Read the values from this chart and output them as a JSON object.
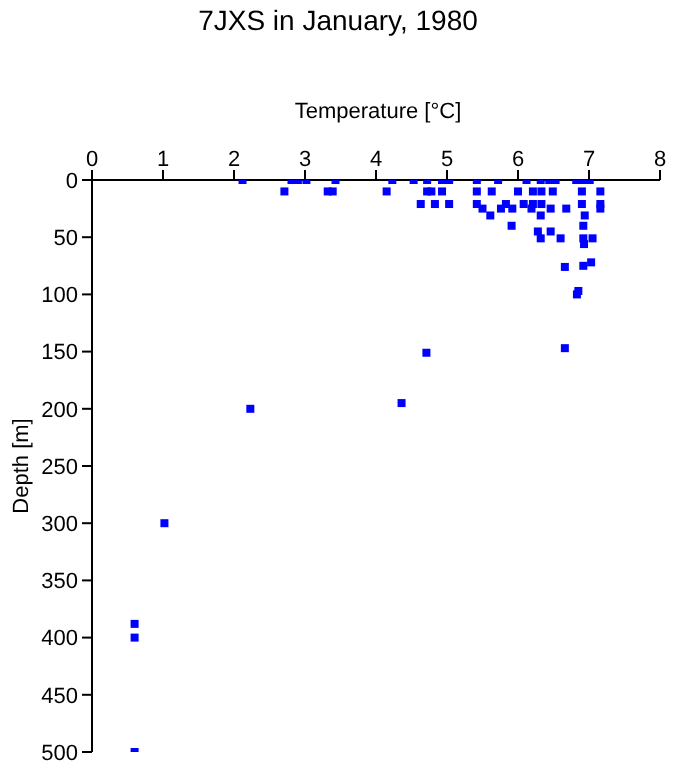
{
  "chart_data": {
    "type": "scatter",
    "title": "7JXS in January, 1980",
    "xlabel": "Temperature [°C]",
    "ylabel": "Depth [m]",
    "x": [
      2.12,
      2.81,
      2.9,
      3.02,
      3.43,
      4.23,
      4.53,
      4.72,
      4.93,
      5.03,
      5.42,
      5.72,
      6.12,
      6.32,
      6.44,
      6.53,
      6.82,
      6.91,
      7.01,
      2.71,
      3.32,
      3.39,
      4.15,
      4.72,
      4.78,
      4.93,
      5.42,
      5.63,
      6.0,
      6.21,
      6.33,
      6.49,
      6.9,
      7.16,
      4.63,
      4.83,
      5.03,
      5.42,
      5.83,
      6.08,
      6.21,
      6.33,
      6.9,
      7.16,
      5.5,
      5.76,
      5.92,
      6.19,
      6.46,
      6.68,
      7.16,
      5.61,
      6.32,
      6.94,
      5.91,
      6.92,
      6.28,
      6.46,
      6.32,
      6.6,
      6.92,
      7.05,
      6.93,
      7.03,
      6.92,
      6.66,
      6.85,
      6.83,
      6.66,
      4.71,
      4.36,
      2.23,
      1.02,
      0.6,
      0.6,
      0.6
    ],
    "series": [
      {
        "color": "#0000ff",
        "values": [
          0,
          0,
          0,
          0,
          0,
          0,
          0,
          0,
          0,
          0,
          0,
          0,
          0,
          0,
          0,
          0,
          0,
          0,
          0,
          10,
          10,
          10,
          10,
          10,
          10,
          10,
          10,
          10,
          10,
          10,
          10,
          10,
          10,
          10,
          21,
          21,
          21,
          21,
          21,
          21,
          21,
          21,
          21,
          21,
          25,
          25,
          25,
          25,
          25,
          25,
          25,
          31,
          31,
          31,
          40,
          40,
          45,
          45,
          51,
          51,
          51,
          51,
          56,
          72,
          75,
          76,
          97,
          100,
          147,
          151,
          195,
          200,
          300,
          388,
          400,
          500
        ]
      }
    ],
    "xlim": [
      0,
      8
    ],
    "xticks": [
      0,
      1,
      2,
      3,
      4,
      5,
      6,
      7,
      8
    ],
    "ylim": [
      500,
      0
    ],
    "yticks": [
      0,
      50,
      100,
      150,
      200,
      250,
      300,
      350,
      400,
      450,
      500
    ],
    "grid": false,
    "legend": false,
    "marker": "square"
  }
}
